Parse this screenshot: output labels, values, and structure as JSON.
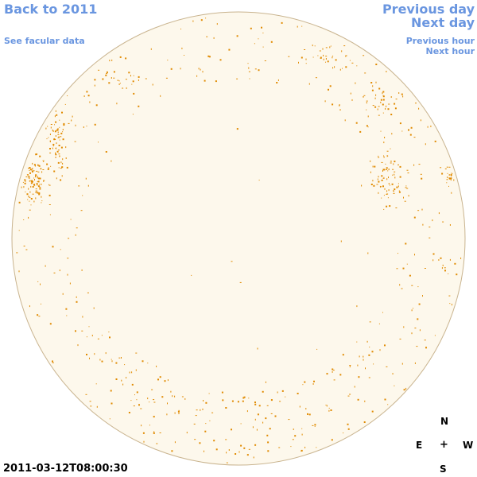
{
  "nav": {
    "back_label": "Back to 2011",
    "facular_label": "See facular data",
    "previous_day_label": "Previous day",
    "next_day_label": "Next day",
    "previous_hour_label": "Previous hour",
    "next_hour_label": "Next hour"
  },
  "compass": {
    "north": "N",
    "east": "E",
    "center": "+",
    "west": "W",
    "south": "S"
  },
  "timestamp": "2011-03-12T08:00:30",
  "colors": {
    "link": "#6a96e0",
    "disk_fill": "#fdf8ec",
    "disk_edge": "#c9b48f",
    "facula": "#e08a00"
  }
}
